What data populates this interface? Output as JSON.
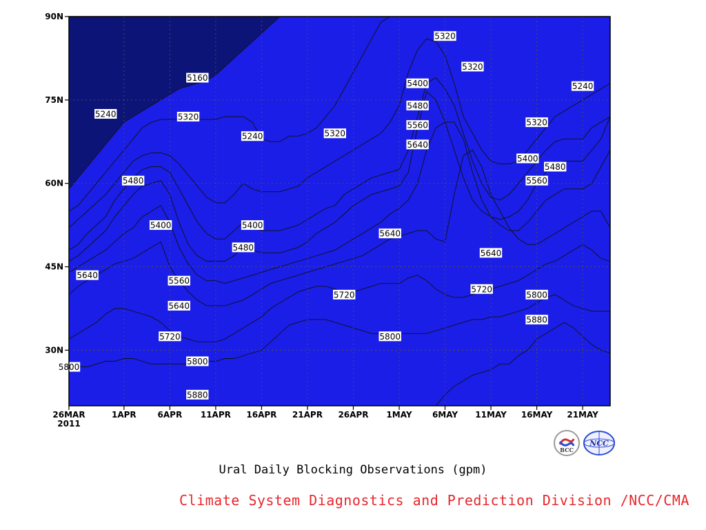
{
  "title": "Ural Daily Blocking Observations (gpm)",
  "credit": "Climate System Diagnostics and Prediction Division /NCC/CMA",
  "logos": [
    {
      "name": "bcc-logo",
      "text": "BCC",
      "color": "#d32b2b"
    },
    {
      "name": "ncc-logo",
      "text": "NCC",
      "color": "#2b4bd3"
    }
  ],
  "chart_data": {
    "type": "contour",
    "x_unit": "date",
    "x": [
      "26MAR 2011",
      "27MAR",
      "28MAR",
      "29MAR",
      "30MAR",
      "31MAR",
      "1APR",
      "2APR",
      "3APR",
      "4APR",
      "5APR",
      "6APR",
      "7APR",
      "8APR",
      "9APR",
      "10APR",
      "11APR",
      "12APR",
      "13APR",
      "14APR",
      "15APR",
      "16APR",
      "17APR",
      "18APR",
      "19APR",
      "20APR",
      "21APR",
      "22APR",
      "23APR",
      "24APR",
      "25APR",
      "26APR",
      "27APR",
      "28APR",
      "29APR",
      "30APR",
      "1MAY",
      "2MAY",
      "3MAY",
      "4MAY",
      "5MAY",
      "6MAY",
      "7MAY",
      "8MAY",
      "9MAY",
      "10MAY",
      "11MAY",
      "12MAY",
      "13MAY",
      "14MAY",
      "15MAY",
      "16MAY",
      "17MAY",
      "18MAY",
      "19MAY",
      "20MAY",
      "21MAY",
      "22MAY",
      "23MAY",
      "24MAY"
    ],
    "xticks": [
      "26MAR",
      "1APR",
      "6APR",
      "11APR",
      "16APR",
      "21APR",
      "26APR",
      "1MAY",
      "6MAY",
      "11MAY",
      "16MAY",
      "21MAY"
    ],
    "x_year_label": "2011",
    "y_unit": "latitude",
    "yticks": [
      "30N",
      "45N",
      "60N",
      "75N",
      "90N"
    ],
    "ylim": [
      20,
      90
    ],
    "levels": [
      5160,
      5240,
      5320,
      5400,
      5480,
      5560,
      5640,
      5720,
      5800,
      5880
    ],
    "fill_colors": [
      "#0d1478",
      "#1a1ee6",
      "#4a5ae8",
      "#5f8de6",
      "#5dc3f7",
      "#fafc7c",
      "#fadf9a",
      "#f5a46b",
      "#f5764a",
      "#f56e78",
      "#ee3e46"
    ],
    "boundary_latitudes": {
      "5880": [
        20,
        20,
        20,
        20,
        20,
        20,
        20,
        20,
        20,
        20,
        20,
        20,
        20,
        20,
        20,
        20,
        20,
        20,
        20,
        20,
        20,
        20,
        20,
        20,
        20,
        20,
        20,
        20,
        20,
        20,
        20,
        20,
        20,
        20,
        20,
        20,
        20,
        20,
        20,
        20,
        20,
        22,
        23.5,
        24.5,
        25.5,
        26,
        26.5,
        27.5,
        27.5,
        29,
        30,
        32,
        33,
        34,
        35,
        34,
        32.5,
        31,
        30,
        29.5
      ],
      "5800": [
        26.5,
        27,
        27,
        27.5,
        28,
        28,
        28.5,
        28.5,
        28,
        27.5,
        27.5,
        27.5,
        27.5,
        27.5,
        28,
        28,
        28,
        28.5,
        28.5,
        29,
        29.5,
        30,
        31.5,
        33,
        34.5,
        35,
        35.5,
        35.5,
        35.5,
        35,
        34.5,
        34,
        33.5,
        33,
        33,
        33,
        33,
        33,
        33,
        33,
        33.5,
        34,
        34.5,
        35,
        35.5,
        35.5,
        36,
        36,
        36.5,
        37,
        37.5,
        38.5,
        39.5,
        40,
        39,
        38,
        37.5,
        37,
        37,
        37
      ],
      "5720": [
        32,
        33,
        34,
        35,
        36.5,
        37.5,
        37.5,
        37,
        36.5,
        36,
        35,
        33.5,
        32.5,
        32,
        31.5,
        31.5,
        31.5,
        32,
        33,
        34,
        35,
        36,
        37.5,
        38.5,
        39.5,
        40.5,
        41,
        41.5,
        41.5,
        41,
        40.5,
        40.5,
        41,
        41.5,
        42,
        42,
        42,
        43,
        43.5,
        42.5,
        41,
        40,
        39.5,
        39.5,
        40,
        40.5,
        41,
        41.5,
        42,
        42.5,
        43.5,
        44.5,
        45.5,
        46,
        47,
        48,
        49,
        48,
        46.5,
        46
      ],
      "5640": [
        40,
        41.5,
        42.5,
        43.5,
        44.5,
        45.5,
        46,
        46.5,
        47.5,
        48.5,
        49.5,
        45,
        42.5,
        40.5,
        39,
        38,
        38,
        38,
        38.5,
        39,
        40,
        41,
        42,
        42.5,
        43,
        43.5,
        44,
        44.5,
        45,
        45.5,
        46,
        46.5,
        47,
        48,
        49,
        50,
        50.5,
        51,
        51.5,
        51.5,
        50,
        49.5,
        58,
        65,
        66,
        63,
        58,
        55,
        52,
        50,
        49,
        49,
        50,
        51,
        52,
        53,
        54,
        55,
        55,
        52
      ],
      "5560": [
        44,
        45,
        46,
        47,
        48,
        49.5,
        51,
        52,
        54,
        55,
        56,
        53,
        48.5,
        45.5,
        43.5,
        42.5,
        42.5,
        42,
        42.5,
        43,
        43.5,
        44,
        44.5,
        45,
        45.5,
        46,
        46.5,
        47,
        47.5,
        48,
        49,
        50,
        51,
        52,
        53,
        54.5,
        55.5,
        57,
        60,
        66,
        70,
        71,
        71,
        68,
        62,
        57,
        54,
        52.5,
        51.5,
        51.5,
        53,
        55,
        57,
        58,
        59,
        59,
        59,
        60,
        63,
        66
      ],
      "5480": [
        46,
        47,
        48.5,
        50,
        51.5,
        54,
        56,
        58,
        59.5,
        60,
        60.5,
        58,
        53,
        49,
        47,
        46,
        46,
        46,
        47,
        48.5,
        48,
        47.5,
        47.5,
        47.5,
        48,
        48.5,
        49.5,
        51,
        52,
        53,
        54.5,
        56,
        57,
        58,
        58.5,
        59,
        59.5,
        62,
        70,
        76.5,
        75,
        71,
        66,
        61,
        57,
        55,
        54,
        53.5,
        54,
        55,
        57,
        60,
        62,
        63.5,
        64,
        64,
        64,
        66,
        68,
        72
      ],
      "5400": [
        48,
        49,
        51,
        52.5,
        54,
        57,
        59,
        61,
        62.5,
        63,
        63,
        62,
        59,
        56,
        53,
        51,
        50,
        50,
        51.5,
        53,
        52,
        51.5,
        51.5,
        51.5,
        52,
        52.5,
        53.5,
        54.5,
        55.5,
        56,
        58,
        59,
        60,
        61,
        61.5,
        62,
        62.5,
        66,
        72,
        78,
        79,
        77,
        74,
        69,
        64,
        60,
        57.5,
        57,
        58,
        60,
        62,
        64,
        66,
        67.5,
        68,
        68,
        68,
        70,
        71,
        72
      ],
      "5320": [
        52,
        53.5,
        55,
        56.5,
        58,
        60,
        62,
        64,
        65,
        65.5,
        65.5,
        65,
        63.5,
        61.5,
        59.5,
        57.5,
        56.5,
        56.5,
        58,
        60,
        59,
        58.5,
        58.5,
        58.5,
        59,
        59.5,
        61,
        62,
        63,
        64,
        65,
        66,
        67,
        68,
        69,
        71,
        74,
        80,
        84,
        86,
        85.5,
        83,
        78,
        72,
        69,
        66,
        64,
        63.5,
        63.5,
        64,
        66,
        68,
        70,
        72,
        73,
        74,
        75,
        76,
        77,
        78
      ],
      "5240": [
        55,
        56,
        58,
        60,
        62,
        64,
        66,
        68,
        70,
        71,
        71.5,
        71.5,
        71.5,
        71.5,
        71.5,
        71.5,
        71.5,
        72,
        72,
        72,
        71,
        68,
        67.5,
        67.5,
        68.5,
        68.5,
        69,
        70,
        72,
        74,
        77,
        80,
        83,
        86,
        89,
        90,
        90,
        90,
        90,
        90,
        90,
        90,
        90,
        90,
        90,
        90,
        90,
        90,
        90,
        90,
        90,
        90,
        90,
        90,
        90,
        90,
        90,
        90,
        90,
        90
      ],
      "5160": [
        59,
        61,
        63,
        65,
        67,
        69,
        71,
        72,
        73,
        74,
        75,
        76,
        77,
        77.5,
        78,
        78.5,
        79.5,
        81,
        82.5,
        84,
        85.5,
        87,
        88.5,
        90,
        90,
        90,
        90,
        90,
        90,
        90,
        90,
        90,
        90,
        90,
        90,
        90,
        90,
        90,
        90,
        90,
        90,
        90,
        90,
        90,
        90,
        90,
        90,
        90,
        90,
        90,
        90,
        90,
        90,
        90,
        90,
        90,
        90,
        90,
        90,
        90
      ]
    },
    "contour_labels": [
      {
        "value": "5160",
        "date": "9APR",
        "lat": 79
      },
      {
        "value": "5240",
        "date": "30MAR",
        "lat": 72.5
      },
      {
        "value": "5240",
        "date": "15APR",
        "lat": 68.5
      },
      {
        "value": "5240",
        "date": "21MAY",
        "lat": 77.5
      },
      {
        "value": "5320",
        "date": "8APR",
        "lat": 72
      },
      {
        "value": "5320",
        "date": "24APR",
        "lat": 69
      },
      {
        "value": "5320",
        "date": "6MAY",
        "lat": 86.5
      },
      {
        "value": "5320",
        "date": "9MAY",
        "lat": 81
      },
      {
        "value": "5320",
        "date": "16MAY",
        "lat": 71
      },
      {
        "value": "5400",
        "date": "5APR",
        "lat": 52.5
      },
      {
        "value": "5400",
        "date": "15APR",
        "lat": 52.5
      },
      {
        "value": "5400",
        "date": "3MAY",
        "lat": 78
      },
      {
        "value": "5400",
        "date": "15MAY",
        "lat": 64.5
      },
      {
        "value": "5480",
        "date": "2APR",
        "lat": 60.5
      },
      {
        "value": "5480",
        "date": "14APR",
        "lat": 48.5
      },
      {
        "value": "5480",
        "date": "3MAY",
        "lat": 74
      },
      {
        "value": "5480",
        "date": "18MAY",
        "lat": 63
      },
      {
        "value": "5560",
        "date": "7APR",
        "lat": 42.5
      },
      {
        "value": "5560",
        "date": "3MAY",
        "lat": 70.5
      },
      {
        "value": "5560",
        "date": "16MAY",
        "lat": 60.5
      },
      {
        "value": "5640",
        "date": "28MAR",
        "lat": 43.5
      },
      {
        "value": "5640",
        "date": "7APR",
        "lat": 38
      },
      {
        "value": "5640",
        "date": "30APR",
        "lat": 51
      },
      {
        "value": "5640",
        "date": "3MAY",
        "lat": 67
      },
      {
        "value": "5640",
        "date": "11MAY",
        "lat": 47.5
      },
      {
        "value": "5720",
        "date": "6APR",
        "lat": 32.5
      },
      {
        "value": "5720",
        "date": "25APR",
        "lat": 40
      },
      {
        "value": "5720",
        "date": "10MAY",
        "lat": 41
      },
      {
        "value": "5800",
        "date": "26MAR",
        "lat": 27
      },
      {
        "value": "5800",
        "date": "9APR",
        "lat": 28
      },
      {
        "value": "5800",
        "date": "30APR",
        "lat": 32.5
      },
      {
        "value": "5800",
        "date": "16MAY",
        "lat": 40
      },
      {
        "value": "5880",
        "date": "9APR",
        "lat": 22
      },
      {
        "value": "5880",
        "date": "16MAY",
        "lat": 35.5
      }
    ],
    "grid": "dotted",
    "legend": "none"
  }
}
